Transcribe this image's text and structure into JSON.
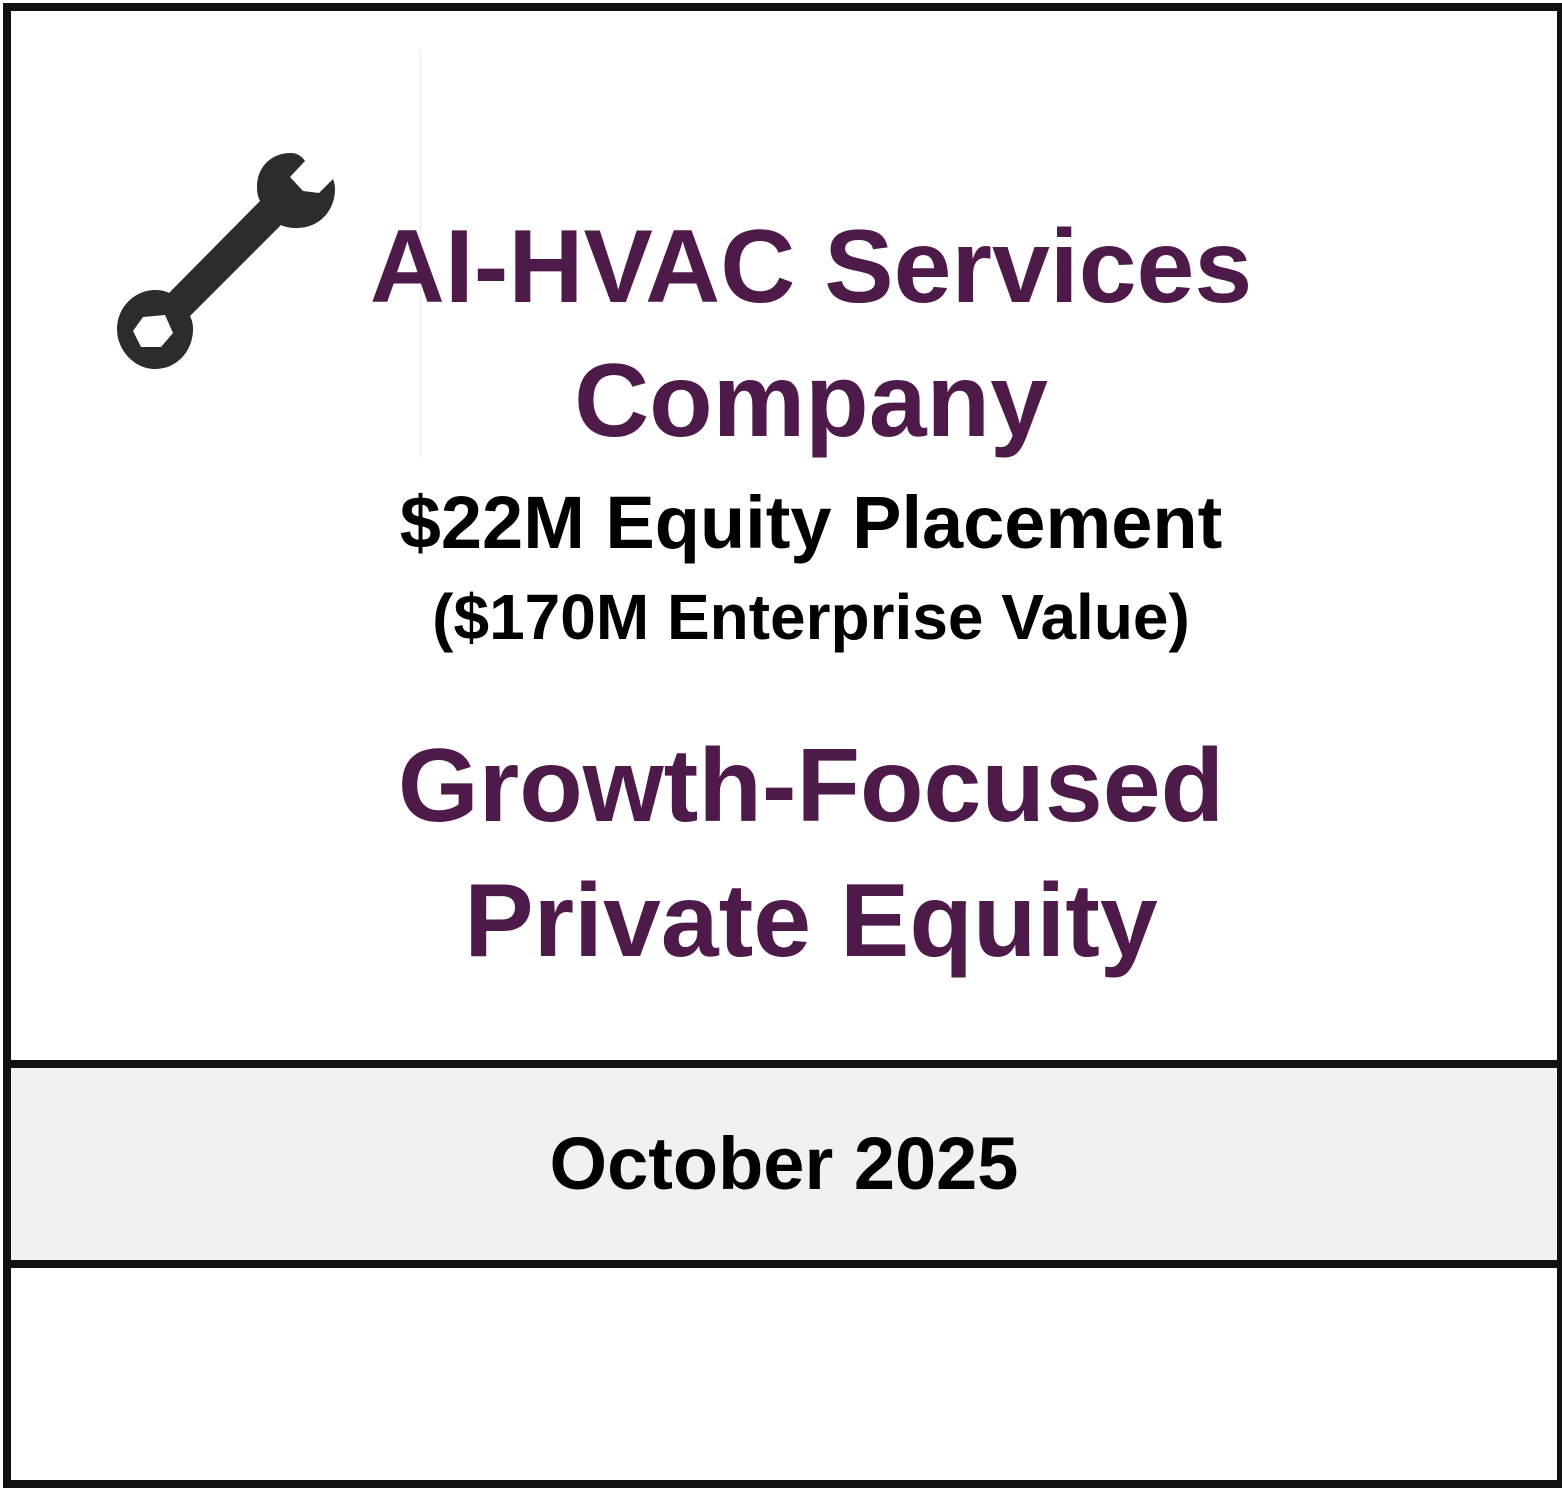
{
  "tombstone": {
    "company_line1": "AI-HVAC Services",
    "company_line2": "Company",
    "transaction_line1": "$22M Equity Placement",
    "transaction_line2": "($170M Enterprise Value)",
    "party_line1": "Growth-Focused",
    "party_line2": "Private Equity",
    "date": "October 2025"
  },
  "icon": {
    "name": "wrench-icon",
    "color": "#2f2b2a"
  },
  "colors": {
    "title": "#4d1a49",
    "text": "#000000",
    "border": "#111111",
    "date_band": "#f1f1f1"
  }
}
